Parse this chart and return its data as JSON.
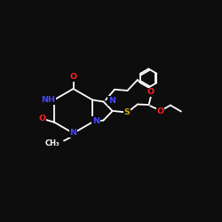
{
  "background_color": "#0d0d0d",
  "bond_color": "#ffffff",
  "N_color": "#4444ff",
  "O_color": "#ff2222",
  "S_color": "#ccaa00",
  "figsize": [
    2.5,
    2.5
  ],
  "dpi": 100,
  "xlim": [
    0,
    10
  ],
  "ylim": [
    0,
    10
  ],
  "lw": 1.3,
  "fs": 6.8
}
